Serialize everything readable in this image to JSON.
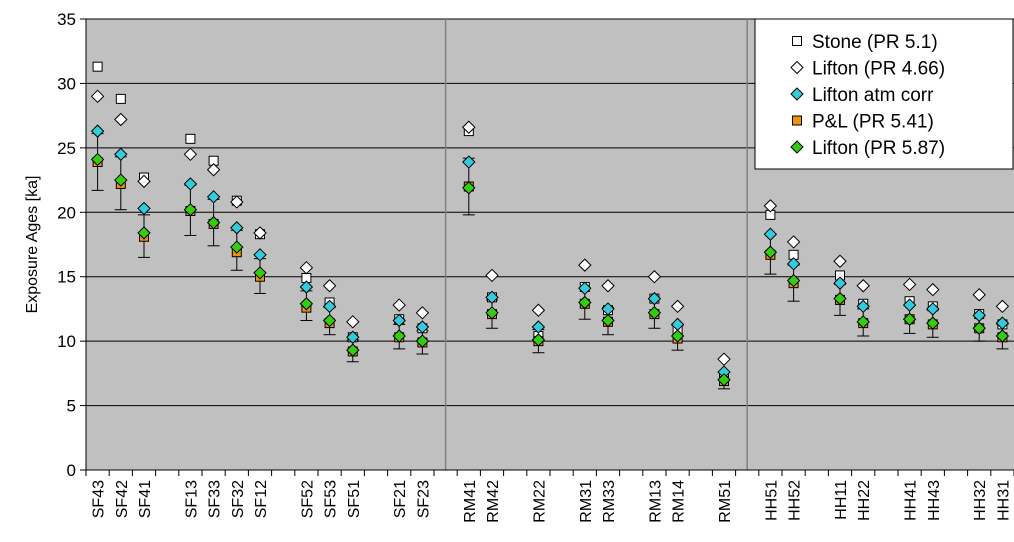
{
  "chart_data": {
    "type": "scatter",
    "title": "",
    "xlabel": "",
    "ylabel": "Exposure Ages [ka]",
    "ylim": [
      0,
      35
    ],
    "yticks": [
      0,
      5,
      10,
      15,
      20,
      25,
      30,
      35
    ],
    "grid": true,
    "legend_position": "top-right",
    "plot_background": "#c0c0c0",
    "categories": [
      "SF43",
      "SF42",
      "SF41",
      "",
      "SF13",
      "SF33",
      "SF32",
      "SF12",
      "",
      "SF52",
      "SF53",
      "SF51",
      "",
      "SF21",
      "SF23",
      "",
      "RM41",
      "RM42",
      "",
      "RM22",
      "",
      "RM31",
      "RM33",
      "",
      "RM13",
      "RM14",
      "",
      "RM51",
      "",
      "HH51",
      "HH52",
      "",
      "HH11",
      "HH22",
      "",
      "HH41",
      "HH43",
      "",
      "HH32",
      "HH31"
    ],
    "group_dividers_after": [
      "SF23",
      "RM51"
    ],
    "error_bar_series": "P&L (PR 5.41)",
    "error_low": [
      21.7,
      20.2,
      16.5,
      null,
      18.2,
      17.4,
      15.5,
      13.7,
      null,
      11.6,
      10.5,
      8.4,
      null,
      9.4,
      9.0,
      null,
      19.8,
      11.0,
      null,
      9.1,
      null,
      11.7,
      10.5,
      null,
      11.0,
      9.3,
      null,
      6.3,
      null,
      15.2,
      13.1,
      null,
      12.0,
      10.4,
      null,
      10.6,
      10.3,
      null,
      10.0,
      9.4
    ],
    "error_high": [
      26.1,
      24.3,
      19.8,
      null,
      22.1,
      21.0,
      18.6,
      16.4,
      null,
      13.9,
      12.6,
      10.1,
      null,
      11.3,
      10.8,
      null,
      24.2,
      13.2,
      null,
      10.9,
      null,
      14.1,
      12.6,
      null,
      13.3,
      11.2,
      null,
      7.6,
      null,
      18.3,
      15.9,
      null,
      14.4,
      12.5,
      null,
      12.8,
      12.4,
      null,
      12.0,
      11.3
    ],
    "series": [
      {
        "name": "Stone (PR 5.1)",
        "marker": "square",
        "color": "#ffffff",
        "values": [
          31.3,
          28.8,
          22.7,
          null,
          25.7,
          24.0,
          20.9,
          18.3,
          null,
          14.9,
          13.0,
          10.3,
          null,
          11.7,
          11.0,
          null,
          26.3,
          13.4,
          null,
          10.4,
          null,
          14.2,
          12.4,
          null,
          13.3,
          10.9,
          null,
          7.3,
          null,
          19.8,
          16.7,
          null,
          15.1,
          12.9,
          null,
          13.1,
          12.7,
          null,
          12.1,
          11.3
        ]
      },
      {
        "name": "Lifton (PR 4.66)",
        "marker": "diamond",
        "color": "#ffffff",
        "values": [
          29.0,
          27.2,
          22.4,
          null,
          24.5,
          23.3,
          20.8,
          18.4,
          null,
          15.7,
          14.3,
          11.5,
          null,
          12.8,
          12.2,
          null,
          26.6,
          15.1,
          null,
          12.4,
          null,
          15.9,
          14.3,
          null,
          15.0,
          12.7,
          null,
          8.6,
          null,
          20.5,
          17.7,
          null,
          16.2,
          14.3,
          null,
          14.4,
          14.0,
          null,
          13.6,
          12.7
        ]
      },
      {
        "name": "Lifton atm corr",
        "marker": "diamond",
        "color": "#33ccdd",
        "values": [
          26.3,
          24.5,
          20.3,
          null,
          22.2,
          21.2,
          18.8,
          16.7,
          null,
          14.2,
          12.7,
          10.3,
          null,
          11.6,
          11.1,
          null,
          23.9,
          13.4,
          null,
          11.1,
          null,
          14.1,
          12.5,
          null,
          13.3,
          11.3,
          null,
          7.6,
          null,
          18.3,
          16.0,
          null,
          14.5,
          12.7,
          null,
          12.8,
          12.5,
          null,
          12.0,
          11.4
        ]
      },
      {
        "name": "P&L (PR 5.41)",
        "marker": "square",
        "color": "#f0900f",
        "values": [
          23.9,
          22.2,
          18.1,
          null,
          20.1,
          19.1,
          16.9,
          15.0,
          null,
          12.6,
          11.4,
          9.2,
          null,
          10.3,
          9.9,
          null,
          22.0,
          12.1,
          null,
          10.0,
          null,
          12.9,
          11.5,
          null,
          12.1,
          10.2,
          null,
          6.9,
          null,
          16.7,
          14.5,
          null,
          13.2,
          11.4,
          null,
          11.7,
          11.3,
          null,
          11.0,
          10.3
        ]
      },
      {
        "name": "Lifton (PR 5.87)",
        "marker": "diamond",
        "color": "#33cc11",
        "values": [
          24.1,
          22.5,
          18.4,
          null,
          20.2,
          19.2,
          17.3,
          15.3,
          null,
          12.9,
          11.6,
          9.3,
          null,
          10.4,
          10.0,
          null,
          21.9,
          12.2,
          null,
          10.1,
          null,
          13.0,
          11.6,
          null,
          12.2,
          10.4,
          null,
          7.0,
          null,
          16.9,
          14.7,
          null,
          13.3,
          11.5,
          null,
          11.7,
          11.4,
          null,
          11.0,
          10.4
        ]
      }
    ]
  }
}
